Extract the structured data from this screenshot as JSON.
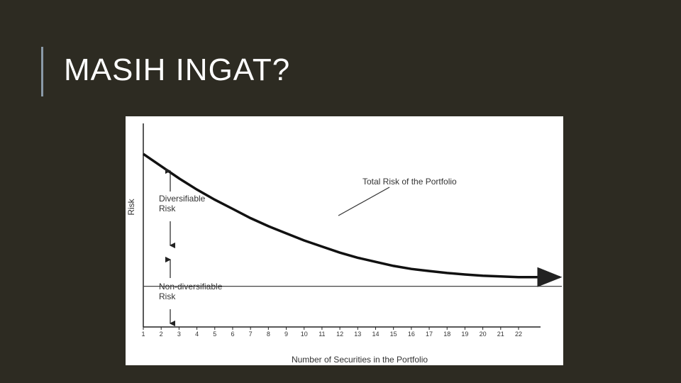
{
  "slide": {
    "title": "MASIH INGAT?"
  },
  "colors": {
    "background": "#2d2b22",
    "accent_bar": "#8a9aa8",
    "title": "#ffffff",
    "chart_bg": "#ffffff",
    "ink": "#222222"
  },
  "chart_data": {
    "type": "line",
    "title": "",
    "xlabel": "Number of Securities in the Portfolio",
    "ylabel": "Risk",
    "x_ticks": [
      "1",
      "2",
      "3",
      "4",
      "5",
      "6",
      "7",
      "8",
      "9",
      "10",
      "11",
      "12",
      "13",
      "14",
      "15",
      "16",
      "17",
      "18",
      "19",
      "20",
      "21",
      "22"
    ],
    "xlim": [
      1,
      22
    ],
    "ylim": [
      0,
      1
    ],
    "grid": false,
    "series": [
      {
        "name": "Total Risk of the Portfolio",
        "x": [
          1,
          2,
          3,
          4,
          5,
          6,
          7,
          8,
          9,
          10,
          11,
          12,
          13,
          14,
          15,
          16,
          17,
          18,
          19,
          20,
          21,
          22
        ],
        "y": [
          0.85,
          0.79,
          0.73,
          0.675,
          0.625,
          0.58,
          0.535,
          0.495,
          0.46,
          0.425,
          0.395,
          0.365,
          0.34,
          0.32,
          0.3,
          0.285,
          0.275,
          0.265,
          0.258,
          0.252,
          0.248,
          0.245
        ]
      }
    ],
    "reference_line": {
      "y": 0.2,
      "label": ""
    },
    "annotations": [
      {
        "text_lines": [
          "Diversifiable",
          "Risk"
        ],
        "region": "between total risk curve and non-diversifiable line"
      },
      {
        "text_lines": [
          "Non-diversifiable",
          "Risk"
        ],
        "region": "below horizontal line"
      },
      {
        "text_lines": [
          "Total Risk of the Portfolio"
        ],
        "region": "callout pointing to curve"
      }
    ]
  }
}
